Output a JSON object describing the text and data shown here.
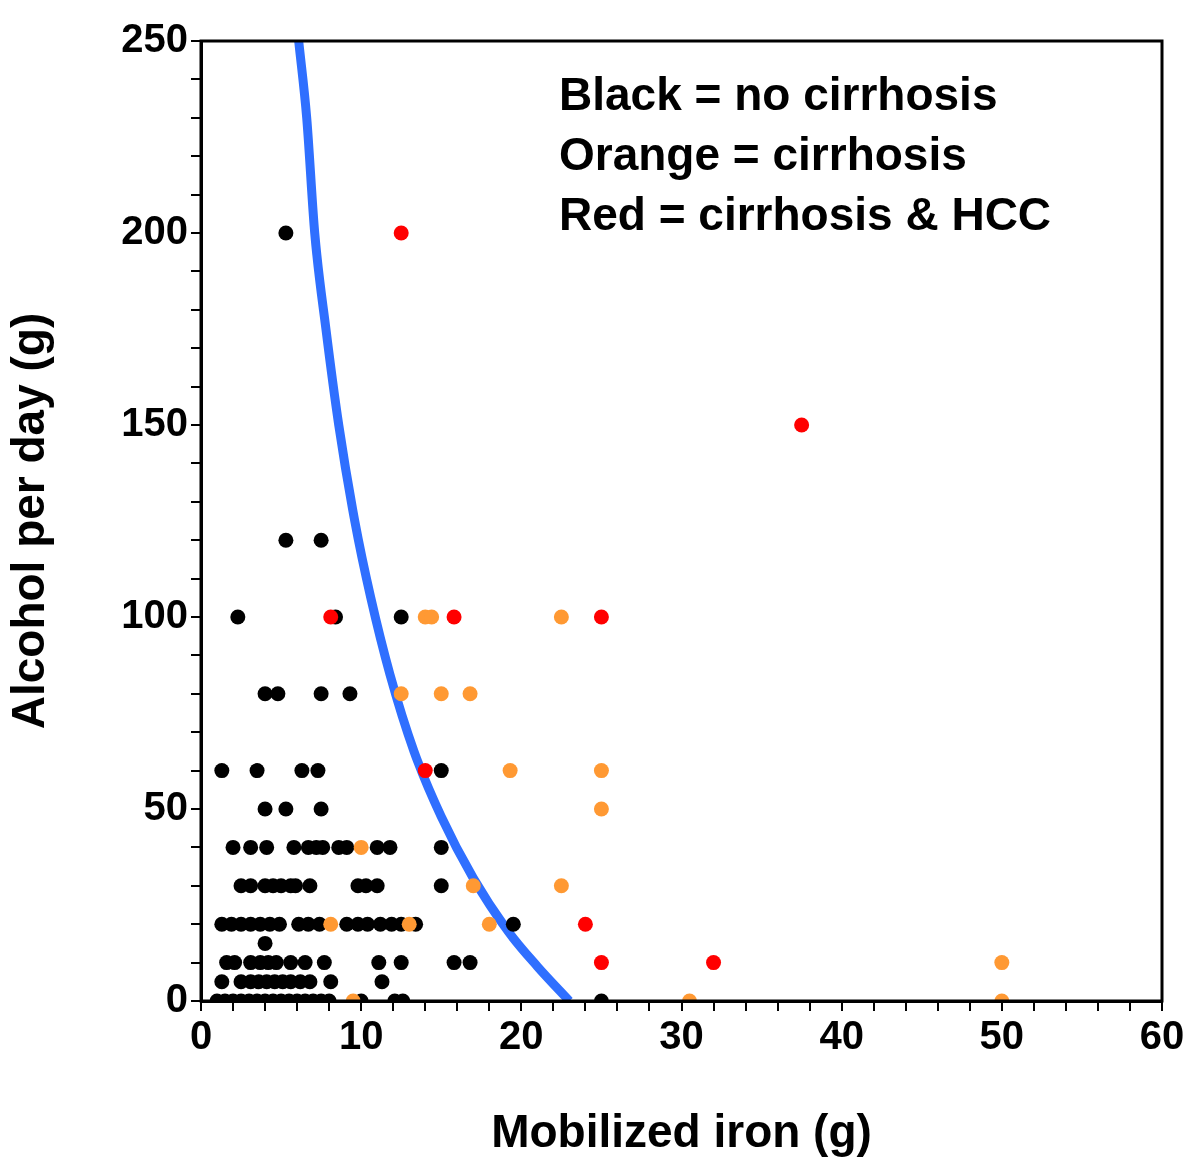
{
  "chart_data": {
    "type": "scatter",
    "xlabel": "Mobilized iron (g)",
    "ylabel": "Alcohol per day (g)",
    "annotations": [
      "Black = no cirrhosis",
      "Orange = cirrhosis",
      "Red = cirrhosis & HCC"
    ],
    "xlim": [
      0,
      60
    ],
    "ylim": [
      0,
      250
    ],
    "xticks": [
      0,
      {
        "value": 2,
        "label": null
      },
      {
        "value": 4,
        "label": null
      },
      {
        "value": 6,
        "label": null
      },
      {
        "value": 8,
        "label": null
      },
      10,
      {
        "value": 12,
        "label": null
      },
      {
        "value": 14,
        "label": null
      },
      {
        "value": 16,
        "label": null
      },
      {
        "value": 18,
        "label": null
      },
      20,
      {
        "value": 22,
        "label": null
      },
      {
        "value": 24,
        "label": null
      },
      {
        "value": 26,
        "label": null
      },
      {
        "value": 28,
        "label": null
      },
      30,
      {
        "value": 32,
        "label": null
      },
      {
        "value": 34,
        "label": null
      },
      {
        "value": 36,
        "label": null
      },
      {
        "value": 38,
        "label": null
      },
      40,
      {
        "value": 42,
        "label": null
      },
      {
        "value": 44,
        "label": null
      },
      {
        "value": 46,
        "label": null
      },
      {
        "value": 48,
        "label": null
      },
      50,
      {
        "value": 52,
        "label": null
      },
      {
        "value": 54,
        "label": null
      },
      {
        "value": 56,
        "label": null
      },
      {
        "value": 58,
        "label": null
      },
      60
    ],
    "yticks": [
      0,
      {
        "value": 10,
        "label": null
      },
      {
        "value": 20,
        "label": null
      },
      {
        "value": 30,
        "label": null
      },
      {
        "value": 40,
        "label": null
      },
      50,
      {
        "value": 60,
        "label": null
      },
      {
        "value": 70,
        "label": null
      },
      {
        "value": 80,
        "label": null
      },
      {
        "value": 90,
        "label": null
      },
      100,
      {
        "value": 110,
        "label": null
      },
      {
        "value": 120,
        "label": null
      },
      {
        "value": 130,
        "label": null
      },
      {
        "value": 140,
        "label": null
      },
      150,
      {
        "value": 160,
        "label": null
      },
      {
        "value": 170,
        "label": null
      },
      {
        "value": 180,
        "label": null
      },
      {
        "value": 190,
        "label": null
      },
      200,
      {
        "value": 210,
        "label": null
      },
      {
        "value": 220,
        "label": null
      },
      {
        "value": 230,
        "label": null
      },
      {
        "value": 240,
        "label": null
      },
      250
    ],
    "grid": false,
    "legend": false,
    "marker": "circle",
    "series": [
      {
        "type": "line",
        "color": "#2f6fff",
        "marker": "none",
        "line_style": "solid",
        "x": [
          6.1,
          6.6,
          7.1,
          7.8,
          8.6,
          9.6,
          10.6,
          11.8,
          13.3,
          15.0,
          17.0,
          19.2,
          21.0,
          23.0
        ],
        "values": [
          250,
          230,
          200,
          175,
          150,
          125,
          105,
          85,
          65,
          48,
          32,
          18,
          9,
          0
        ]
      },
      {
        "color": "#000000",
        "x": [
          5.3,
          5.3,
          7.5,
          2.3,
          8.4,
          12.5,
          4.0,
          4.8,
          7.5,
          9.3,
          1.3,
          3.5,
          6.3,
          7.3,
          15.0,
          4.0,
          5.3,
          7.5,
          2.0,
          3.1,
          4.1,
          5.8,
          6.7,
          7.2,
          7.6,
          8.6,
          9.1,
          11.0,
          11.8,
          15.0,
          2.5,
          3.1,
          4.0,
          4.5,
          5.0,
          5.6,
          5.9,
          6.8,
          9.8,
          10.3,
          11.0,
          15.0,
          1.3,
          1.9,
          2.5,
          3.1,
          3.7,
          4.3,
          4.9,
          6.1,
          6.7,
          7.4,
          9.1,
          9.8,
          10.4,
          11.2,
          11.9,
          12.5,
          13.4,
          19.5,
          4.0,
          1.6,
          2.1,
          3.1,
          3.7,
          4.2,
          4.7,
          5.6,
          6.5,
          7.7,
          11.1,
          12.5,
          15.8,
          16.8,
          1.3,
          2.5,
          3.1,
          3.6,
          4.1,
          4.6,
          5.1,
          5.6,
          6.2,
          6.8,
          8.1,
          11.3,
          1.0,
          1.5,
          2.0,
          2.5,
          3.0,
          3.5,
          4.0,
          4.5,
          5.0,
          5.5,
          6.0,
          6.5,
          7.0,
          7.5,
          8.0,
          10.0,
          12.1,
          12.6,
          25.0
        ],
        "values": [
          200,
          120,
          120,
          100,
          100,
          100,
          80,
          80,
          80,
          80,
          60,
          60,
          60,
          60,
          60,
          50,
          50,
          50,
          40,
          40,
          40,
          40,
          40,
          40,
          40,
          40,
          40,
          40,
          40,
          40,
          30,
          30,
          30,
          30,
          30,
          30,
          30,
          30,
          30,
          30,
          30,
          30,
          20,
          20,
          20,
          20,
          20,
          20,
          20,
          20,
          20,
          20,
          20,
          20,
          20,
          20,
          20,
          20,
          20,
          20,
          15,
          10,
          10,
          10,
          10,
          10,
          10,
          10,
          10,
          10,
          10,
          10,
          10,
          10,
          5,
          5,
          5,
          5,
          5,
          5,
          5,
          5,
          5,
          5,
          5,
          5,
          0,
          0,
          0,
          0,
          0,
          0,
          0,
          0,
          0,
          0,
          0,
          0,
          0,
          0,
          0,
          0,
          0,
          0,
          0
        ]
      },
      {
        "color": "#ff9933",
        "x": [
          14.0,
          14.4,
          22.5,
          12.5,
          15.0,
          16.8,
          19.3,
          25.0,
          25.0,
          10.0,
          17.0,
          22.5,
          8.1,
          13.0,
          18.0,
          50.0,
          9.5,
          30.5,
          50.0
        ],
        "values": [
          100,
          100,
          100,
          80,
          80,
          80,
          60,
          60,
          50,
          40,
          30,
          30,
          20,
          20,
          20,
          10,
          0,
          0,
          0
        ]
      },
      {
        "color": "#ff0000",
        "x": [
          12.5,
          37.5,
          8.1,
          15.8,
          25.0,
          14.0,
          24.0,
          25.0,
          32.0
        ],
        "values": [
          200,
          150,
          100,
          100,
          100,
          60,
          20,
          10,
          10
        ]
      }
    ]
  }
}
